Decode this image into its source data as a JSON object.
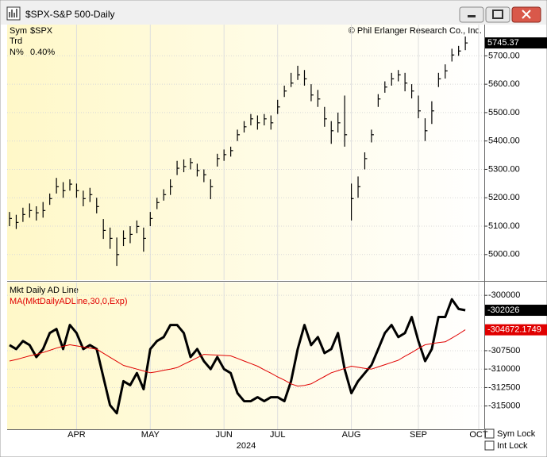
{
  "window": {
    "title": "$SPX-S&P 500-Daily",
    "sym_lock": "Sym Lock",
    "int_lock": "Int Lock"
  },
  "chart_data": [
    {
      "type": "hlc",
      "symbol_label": "Sym",
      "symbol": "$SPX",
      "trend_label": "Trd",
      "n_label": "N%",
      "n_value": "0.40%",
      "copyright": "© Phil Erlanger Research Co., Inc.",
      "color": "#000000",
      "high": [
        5150,
        5140,
        5165,
        5180,
        5170,
        5185,
        5215,
        5270,
        5255,
        5265,
        5250,
        5225,
        5235,
        5200,
        5125,
        5095,
        5060,
        5085,
        5100,
        5120,
        5095,
        5150,
        5200,
        5230,
        5265,
        5330,
        5335,
        5340,
        5320,
        5300,
        5265,
        5355,
        5370,
        5380,
        5440,
        5470,
        5495,
        5490,
        5495,
        5490,
        5545,
        5595,
        5640,
        5665,
        5650,
        5600,
        5580,
        5520,
        5470,
        5500,
        5560,
        5250,
        5275,
        5360,
        5440,
        5565,
        5610,
        5640,
        5650,
        5640,
        5600,
        5560,
        5480,
        5540,
        5640,
        5670,
        5725,
        5735,
        5768
      ],
      "low": [
        5100,
        5090,
        5115,
        5130,
        5120,
        5130,
        5175,
        5215,
        5200,
        5225,
        5200,
        5170,
        5185,
        5145,
        5055,
        5020,
        4960,
        5030,
        5040,
        5075,
        5010,
        5100,
        5160,
        5190,
        5210,
        5280,
        5290,
        5300,
        5275,
        5255,
        5195,
        5310,
        5330,
        5345,
        5400,
        5430,
        5455,
        5440,
        5455,
        5440,
        5495,
        5555,
        5590,
        5615,
        5595,
        5540,
        5520,
        5450,
        5390,
        5430,
        5380,
        5120,
        5200,
        5300,
        5395,
        5520,
        5570,
        5595,
        5610,
        5575,
        5550,
        5480,
        5400,
        5460,
        5590,
        5620,
        5680,
        5700,
        5720
      ],
      "close": [
        5127,
        5113,
        5141,
        5155,
        5147,
        5155,
        5197,
        5239,
        5225,
        5248,
        5225,
        5197,
        5211,
        5169,
        5085,
        5057,
        5000,
        5057,
        5071,
        5099,
        5057,
        5127,
        5183,
        5211,
        5239,
        5304,
        5310,
        5324,
        5296,
        5281,
        5239,
        5338,
        5352,
        5366,
        5422,
        5450,
        5478,
        5464,
        5478,
        5464,
        5520,
        5576,
        5604,
        5633,
        5619,
        5562,
        5548,
        5478,
        5436,
        5464,
        5422,
        5197,
        5239,
        5338,
        5422,
        5548,
        5590,
        5619,
        5633,
        5604,
        5576,
        5506,
        5436,
        5506,
        5619,
        5647,
        5703,
        5717,
        5745.37
      ],
      "ylim": [
        4910,
        5810
      ],
      "yticks": [
        {
          "value": 5000,
          "label": "5000.00"
        },
        {
          "value": 5100,
          "label": "5100.00"
        },
        {
          "value": 5200,
          "label": "5200.00"
        },
        {
          "value": 5300,
          "label": "5300.00"
        },
        {
          "value": 5400,
          "label": "5400.00"
        },
        {
          "value": 5500,
          "label": "5500.00"
        },
        {
          "value": 5600,
          "label": "5600.00"
        },
        {
          "value": 5700,
          "label": "5700.00"
        }
      ],
      "grid": true
    },
    {
      "type": "line",
      "xlabel": "2024",
      "categories": [
        null,
        null,
        null,
        null,
        null,
        null,
        null,
        null,
        null,
        null,
        "APR",
        null,
        null,
        null,
        null,
        null,
        null,
        null,
        null,
        null,
        null,
        "MAY",
        null,
        null,
        null,
        null,
        null,
        null,
        null,
        null,
        null,
        null,
        "JUN",
        null,
        null,
        null,
        null,
        null,
        null,
        null,
        "JUL",
        null,
        null,
        null,
        null,
        null,
        null,
        null,
        null,
        null,
        null,
        "AUG",
        null,
        null,
        null,
        null,
        null,
        null,
        null,
        null,
        null,
        "SEP",
        null,
        null,
        null,
        null,
        null,
        null,
        null,
        null,
        "OCT"
      ],
      "series": [
        {
          "name": "Mkt Daily AD Line",
          "color": "#000000",
          "values": [
            -306739,
            -307283,
            -306196,
            -306739,
            -308370,
            -307283,
            -305109,
            -304565,
            -307283,
            -304022,
            -305109,
            -307283,
            -306739,
            -307283,
            -311087,
            -314891,
            -315978,
            -311630,
            -312174,
            -310543,
            -312717,
            -307283,
            -306196,
            -305652,
            -304022,
            -304022,
            -305109,
            -308370,
            -307283,
            -308913,
            -310000,
            -308370,
            -310000,
            -310543,
            -313261,
            -314348,
            -314348,
            -313804,
            -314348,
            -313804,
            -313804,
            -314348,
            -311630,
            -307283,
            -304022,
            -306739,
            -305652,
            -307826,
            -307283,
            -305109,
            -310000,
            -313261,
            -311630,
            -310543,
            -309457,
            -307283,
            -305109,
            -304022,
            -305652,
            -305109,
            -302935,
            -306196,
            -308913,
            -307283,
            -302935,
            -302935,
            -300543,
            -301848,
            -302026,
            null,
            null
          ]
        },
        {
          "name": "MA(MktDailyADLine,30,0,Exp)",
          "color": "#e00000",
          "values": [
            -308900,
            -308700,
            -308450,
            -308200,
            -308000,
            -307750,
            -307450,
            -307150,
            -306900,
            -306700,
            -306850,
            -307000,
            -307150,
            -307300,
            -307850,
            -308400,
            -308950,
            -309500,
            -309750,
            -310000,
            -310250,
            -310500,
            -310350,
            -310150,
            -310000,
            -309800,
            -309350,
            -308900,
            -308450,
            -308000,
            -308050,
            -308100,
            -308150,
            -308200,
            -308550,
            -308900,
            -309250,
            -309600,
            -310100,
            -310550,
            -311050,
            -311500,
            -312000,
            -312300,
            -312200,
            -312000,
            -311500,
            -311000,
            -310500,
            -310200,
            -309900,
            -309600,
            -309750,
            -309900,
            -310000,
            -309700,
            -309400,
            -309100,
            -308800,
            -308250,
            -307750,
            -307200,
            -306700,
            -306550,
            -306400,
            -306300,
            -305800,
            -305250,
            -304672.1749,
            null,
            null
          ]
        }
      ],
      "ylim": [
        -318150,
        -298260
      ],
      "yticks": [
        -300000,
        -307500,
        -310000,
        -312500,
        -315000
      ],
      "grid": true
    }
  ]
}
